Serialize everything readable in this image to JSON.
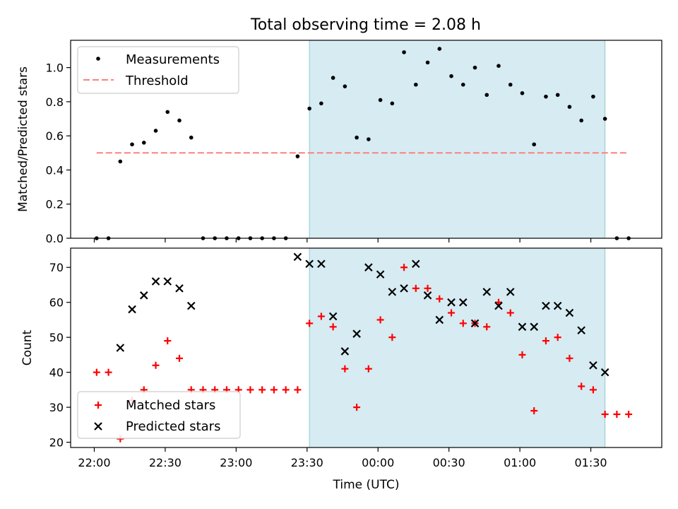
{
  "chart_data": [
    {
      "type": "scatter",
      "title": "Total observing time = 2.08 h",
      "xlabel": "",
      "ylabel": "Matched/Predicted stars",
      "xlim": [
        "21:50",
        "02:00"
      ],
      "ylim": [
        0,
        1.16
      ],
      "yticks": [
        "0.0",
        "0.2",
        "0.4",
        "0.6",
        "0.8",
        "1.0"
      ],
      "grid": false,
      "legend": "top-left",
      "highlight_span": {
        "from": "23:31",
        "to": "01:36",
        "color": "#add8e6"
      },
      "series": [
        {
          "name": "Measurements",
          "marker": "dot",
          "color": "#000000",
          "x": [
            "22:01",
            "22:06",
            "22:11",
            "22:16",
            "22:21",
            "22:26",
            "22:31",
            "22:36",
            "22:41",
            "22:46",
            "22:51",
            "22:56",
            "23:01",
            "23:06",
            "23:11",
            "23:16",
            "23:21",
            "23:26",
            "23:31",
            "23:36",
            "23:41",
            "23:46",
            "23:51",
            "23:56",
            "00:01",
            "00:06",
            "00:11",
            "00:16",
            "00:21",
            "00:26",
            "00:31",
            "00:36",
            "00:41",
            "00:46",
            "00:51",
            "00:56",
            "01:01",
            "01:06",
            "01:11",
            "01:16",
            "01:21",
            "01:26",
            "01:31",
            "01:36",
            "01:41",
            "01:46"
          ],
          "y": [
            0,
            0,
            0.45,
            0.55,
            0.56,
            0.63,
            0.74,
            0.69,
            0.59,
            0,
            0,
            0,
            0,
            0,
            0,
            0,
            0,
            0.48,
            0.76,
            0.79,
            0.94,
            0.89,
            0.59,
            0.58,
            0.81,
            0.79,
            1.09,
            0.9,
            1.03,
            1.11,
            0.95,
            0.9,
            1.0,
            0.84,
            1.01,
            0.9,
            0.85,
            0.55,
            0.83,
            0.84,
            0.77,
            0.69,
            0.83,
            0.7,
            0,
            0
          ]
        },
        {
          "name": "Threshold",
          "style": "dashed",
          "color": "#ff7f7f",
          "x": [
            "22:01",
            "23:31",
            "01:46"
          ],
          "y": [
            0.5,
            0.5,
            0.5
          ]
        }
      ]
    },
    {
      "type": "scatter",
      "title": "",
      "xlabel": "Time (UTC)",
      "ylabel": "Count",
      "xlim": [
        "21:50",
        "02:00"
      ],
      "ylim": [
        18.5,
        75.5
      ],
      "yticks": [
        "20",
        "30",
        "40",
        "50",
        "60",
        "70"
      ],
      "xticks": [
        "22:00",
        "22:30",
        "23:00",
        "23:30",
        "00:00",
        "00:30",
        "01:00",
        "01:30"
      ],
      "grid": false,
      "legend": "bottom-left",
      "highlight_span": {
        "from": "23:31",
        "to": "01:36",
        "color": "#add8e6"
      },
      "series": [
        {
          "name": "Matched stars",
          "marker": "plus",
          "color": "#ff0000",
          "x": [
            "22:01",
            "22:06",
            "22:11",
            "22:16",
            "22:21",
            "22:26",
            "22:31",
            "22:36",
            "22:41",
            "22:46",
            "22:51",
            "22:56",
            "23:01",
            "23:06",
            "23:11",
            "23:16",
            "23:21",
            "23:26",
            "23:31",
            "23:36",
            "23:41",
            "23:46",
            "23:51",
            "23:56",
            "00:01",
            "00:06",
            "00:11",
            "00:16",
            "00:21",
            "00:26",
            "00:31",
            "00:36",
            "00:41",
            "00:46",
            "00:51",
            "00:56",
            "01:01",
            "01:06",
            "01:11",
            "01:16",
            "01:21",
            "01:26",
            "01:31",
            "01:36",
            "01:41",
            "01:46"
          ],
          "y": [
            40,
            40,
            21,
            32,
            35,
            42,
            49,
            44,
            35,
            35,
            35,
            35,
            35,
            35,
            35,
            35,
            35,
            35,
            54,
            56,
            53,
            41,
            30,
            41,
            55,
            50,
            70,
            64,
            64,
            61,
            57,
            54,
            54,
            53,
            60,
            57,
            45,
            29,
            49,
            50,
            44,
            36,
            35,
            28,
            28,
            28
          ]
        },
        {
          "name": "Predicted stars",
          "marker": "x",
          "color": "#000000",
          "x": [
            "22:11",
            "22:16",
            "22:21",
            "22:26",
            "22:31",
            "22:36",
            "22:41",
            "23:26",
            "23:31",
            "23:36",
            "23:41",
            "23:46",
            "23:51",
            "23:56",
            "00:01",
            "00:06",
            "00:11",
            "00:16",
            "00:21",
            "00:26",
            "00:31",
            "00:36",
            "00:41",
            "00:46",
            "00:51",
            "00:56",
            "01:01",
            "01:06",
            "01:11",
            "01:16",
            "01:21",
            "01:26",
            "01:31",
            "01:36"
          ],
          "y": [
            47,
            58,
            62,
            66,
            66,
            64,
            59,
            73,
            71,
            71,
            56,
            46,
            51,
            70,
            68,
            63,
            64,
            71,
            62,
            55,
            60,
            60,
            54,
            63,
            59,
            63,
            53,
            53,
            59,
            59,
            57,
            52,
            42,
            40
          ]
        }
      ]
    }
  ]
}
